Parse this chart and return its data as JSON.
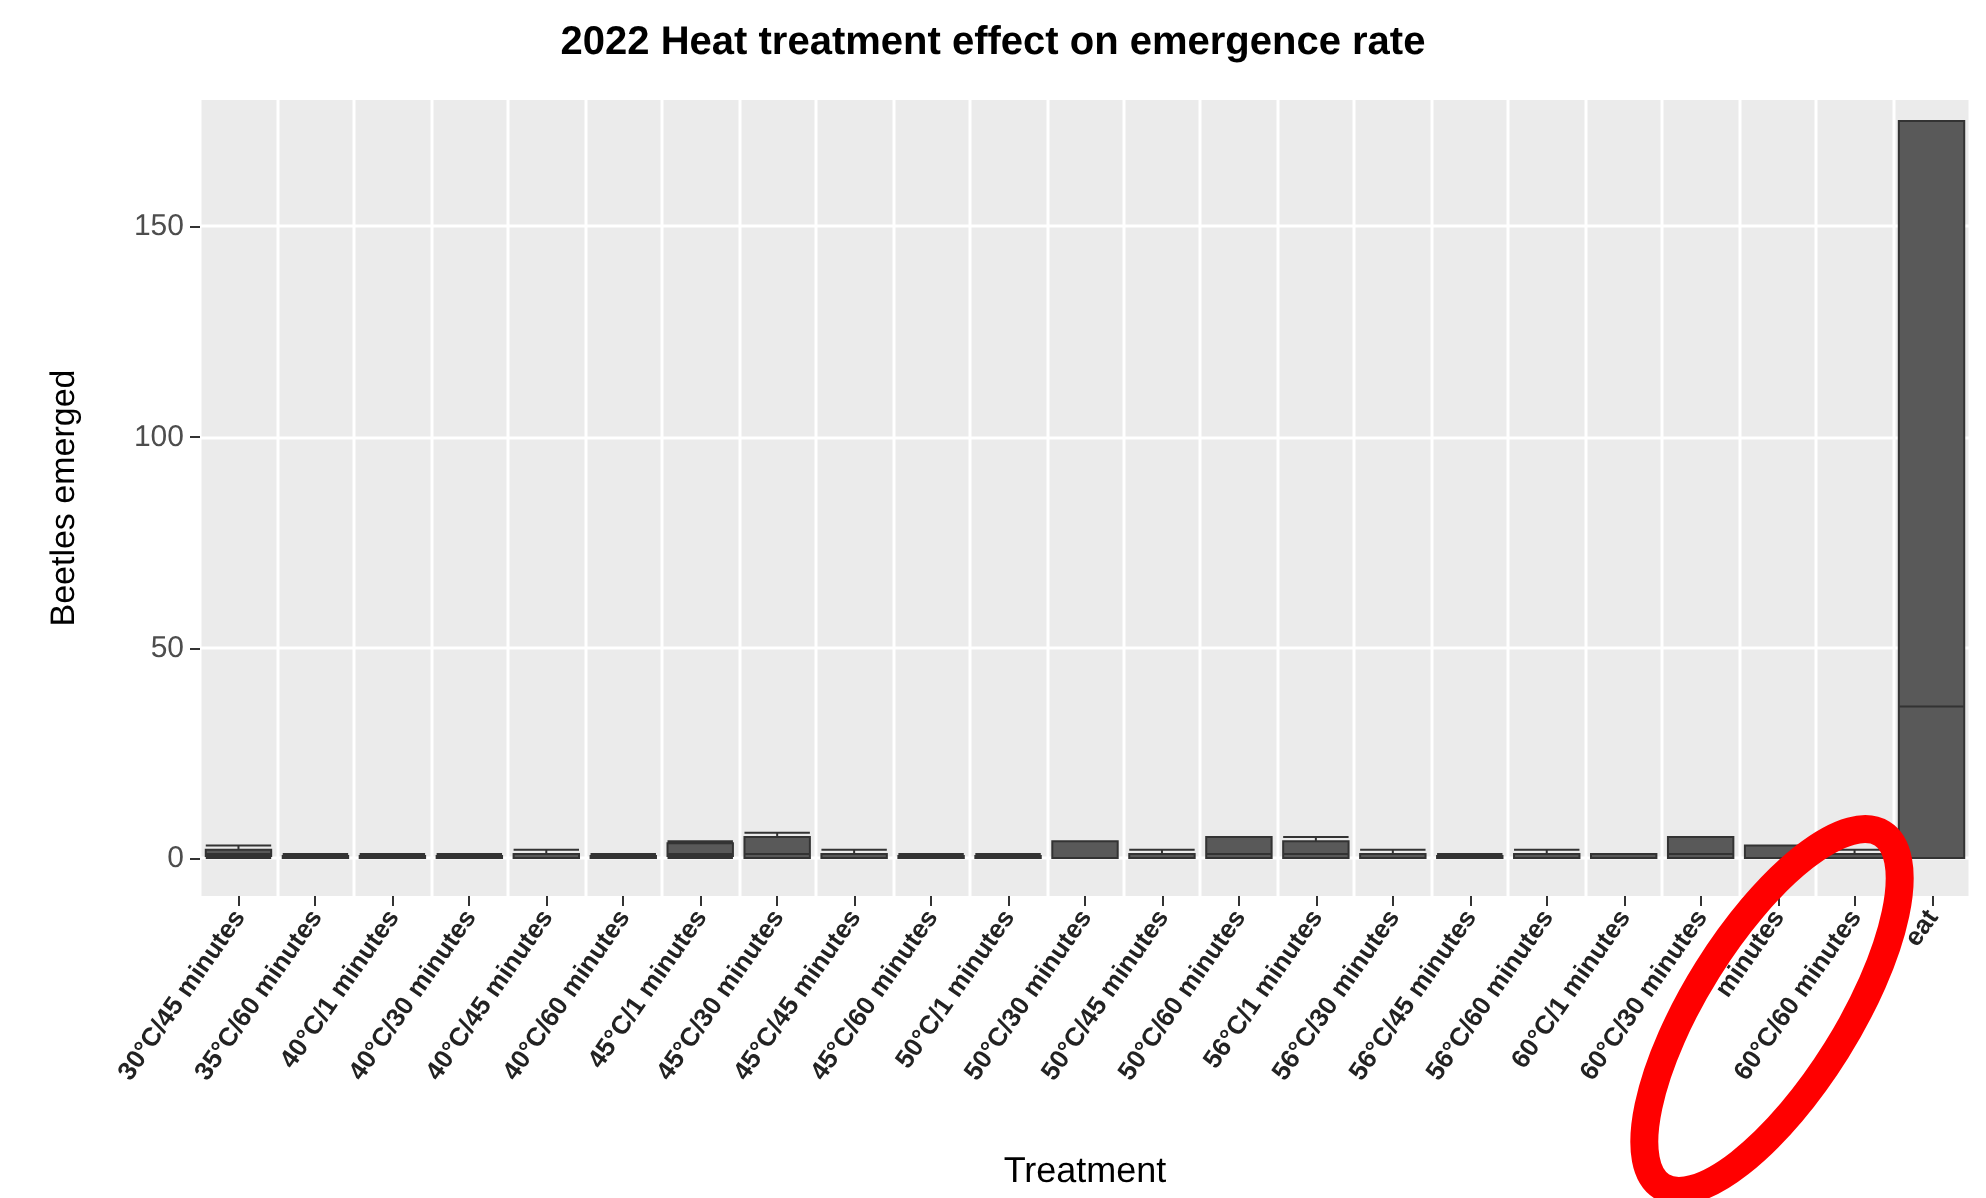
{
  "chart_data": {
    "type": "box",
    "title": "2022 Heat treatment effect on emergence rate",
    "xlabel": "Treatment",
    "ylabel": "Beetles emerged",
    "categories": [
      "30°C/45 minutes",
      "35°C/60 minutes",
      "40°C/1 minutes",
      "40°C/30 minutes",
      "40°C/45 minutes",
      "40°C/60 minutes",
      "45°C/1 minutes",
      "45°C/30 minutes",
      "45°C/45 minutes",
      "45°C/60 minutes",
      "50°C/1 minutes",
      "50°C/30 minutes",
      "50°C/45 minutes",
      "50°C/60 minutes",
      "56°C/1 minutes",
      "56°C/30 minutes",
      "56°C/45 minutes",
      "56°C/60 minutes",
      "60°C/1 minutes",
      "60°C/30 minutes",
      "minutes",
      "60°C/60 minutes",
      "eat"
    ],
    "series": [
      {
        "color": "#595959",
        "boxes": [
          {
            "low": 0,
            "q1": 0.5,
            "median": 1,
            "q3": 2,
            "high": 3
          },
          {
            "low": 0,
            "q1": 0,
            "median": 0,
            "q3": 0.5,
            "high": 1
          },
          {
            "low": 0,
            "q1": 0,
            "median": 0,
            "q3": 0.5,
            "high": 1
          },
          {
            "low": 0,
            "q1": 0,
            "median": 0,
            "q3": 0.5,
            "high": 1
          },
          {
            "low": 0,
            "q1": 0,
            "median": 0,
            "q3": 1,
            "high": 2
          },
          {
            "low": 0,
            "q1": 0,
            "median": 0,
            "q3": 0.5,
            "high": 1
          },
          {
            "low": 0,
            "q1": 0.5,
            "median": 1,
            "q3": 3.5,
            "high": 4
          },
          {
            "low": 0,
            "q1": 0,
            "median": 1,
            "q3": 5,
            "high": 6
          },
          {
            "low": 0,
            "q1": 0,
            "median": 0,
            "q3": 1,
            "high": 2
          },
          {
            "low": 0,
            "q1": 0,
            "median": 0,
            "q3": 0.5,
            "high": 1
          },
          {
            "low": 0,
            "q1": 0,
            "median": 0,
            "q3": 0.5,
            "high": 1
          },
          {
            "low": 0,
            "q1": 0,
            "median": 0,
            "q3": 4,
            "high": 4
          },
          {
            "low": 0,
            "q1": 0,
            "median": 0,
            "q3": 1,
            "high": 2
          },
          {
            "low": 0,
            "q1": 0,
            "median": 1,
            "q3": 5,
            "high": 5
          },
          {
            "low": 0,
            "q1": 0,
            "median": 1,
            "q3": 4,
            "high": 5
          },
          {
            "low": 0,
            "q1": 0,
            "median": 0,
            "q3": 1,
            "high": 2
          },
          {
            "low": 0,
            "q1": 0,
            "median": 0,
            "q3": 0.5,
            "high": 1
          },
          {
            "low": 0,
            "q1": 0,
            "median": 0,
            "q3": 1,
            "high": 2
          },
          {
            "low": 0,
            "q1": 0,
            "median": 0,
            "q3": 1,
            "high": 1
          },
          {
            "low": 0,
            "q1": 0,
            "median": 1,
            "q3": 5,
            "high": 5
          },
          {
            "low": 0,
            "q1": 0,
            "median": 0,
            "q3": 3,
            "high": 3
          },
          {
            "low": 0,
            "q1": 0,
            "median": 0,
            "q3": 1,
            "high": 2
          },
          {
            "low": 0,
            "q1": 0,
            "median": 36,
            "q3": 175,
            "high": 175
          }
        ]
      }
    ],
    "ylim": [
      -9,
      180
    ],
    "yticks": [
      0,
      50,
      100,
      150
    ],
    "grid": true
  }
}
